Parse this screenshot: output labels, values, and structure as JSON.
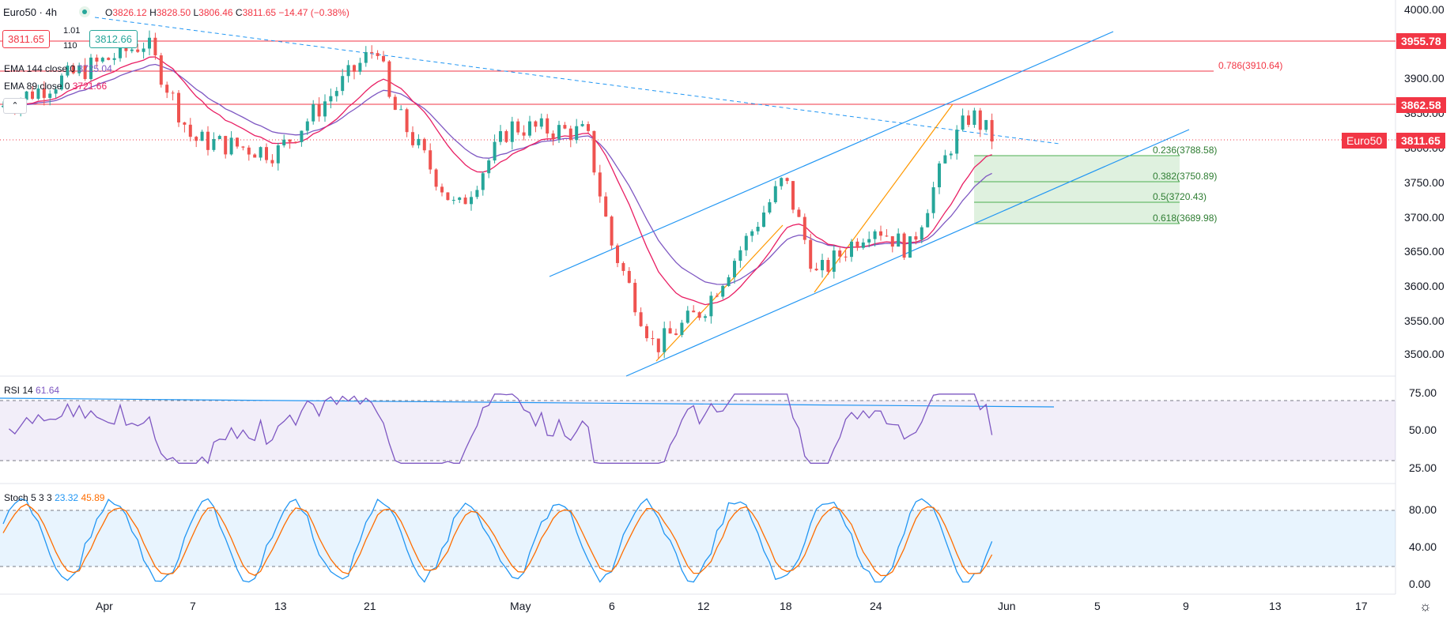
{
  "header": {
    "symbol": "Euro50",
    "interval": "4h",
    "ohlc": {
      "open": "3826.12",
      "high": "3828.50",
      "low": "3806.46",
      "close": "3811.65",
      "change": "−14.47 (−0.38%)"
    },
    "sell_price": "3811.65",
    "buy_price": "3812.66",
    "spread": "1.01",
    "quantity": "110",
    "collapse_icon": "chevron-up-icon"
  },
  "indicators": {
    "ema144": {
      "label": "EMA 144 close 0",
      "value": "3725.04",
      "color": "#7e57c2"
    },
    "ema89": {
      "label": "EMA 89 close 0",
      "value": "3721.66",
      "color": "#e91e63"
    },
    "rsi": {
      "label": "RSI 14",
      "value": "61.64",
      "color": "#7e57c2"
    },
    "stoch": {
      "label": "Stoch 5 3 3",
      "k": "23.32",
      "d": "45.89",
      "k_color": "#2196f3",
      "d_color": "#ff6d00"
    }
  },
  "price_axis": {
    "labels": [
      "4000.00",
      "3950.00",
      "3900.00",
      "3850.00",
      "3800.00",
      "3750.00",
      "3700.00",
      "3650.00",
      "3600.00",
      "3550.00",
      "3500.00"
    ],
    "current": {
      "symbol": "Euro50",
      "value": "3811.65",
      "color": "#f23645"
    },
    "levels": [
      {
        "value": "3955.78",
        "color": "#f23645"
      },
      {
        "value": "3862.58",
        "color": "#f23645"
      }
    ]
  },
  "fib": {
    "levels": [
      {
        "label": "0.786(3910.64)",
        "value": 3910.64
      },
      {
        "label": "0.236(3788.58)",
        "value": 3788.58
      },
      {
        "label": "0.382(3750.89)",
        "value": 3750.89
      },
      {
        "label": "0.5(3720.43)",
        "value": 3720.43
      },
      {
        "label": "0.618(3689.98)",
        "value": 3689.98
      }
    ]
  },
  "rsi_axis": {
    "labels": [
      "75.00",
      "50.00",
      "25.00"
    ]
  },
  "stoch_axis": {
    "labels": [
      "80.00",
      "40.00",
      "0.00"
    ]
  },
  "time_axis": {
    "labels": [
      "Apr",
      "7",
      "13",
      "21",
      "May",
      "6",
      "12",
      "18",
      "24",
      "Jun",
      "5",
      "9",
      "13",
      "17"
    ]
  },
  "settings_icon": "gear-icon",
  "chart_data": {
    "type": "candlestick",
    "symbol": "Euro50",
    "interval": "4h",
    "ylim": [
      3480,
      4010
    ],
    "last_close": 3811.65,
    "key_points": [
      {
        "date": "Apr 3",
        "close": 3960
      },
      {
        "date": "Apr 7",
        "close": 3810
      },
      {
        "date": "Apr 13",
        "close": 3790
      },
      {
        "date": "Apr 21",
        "close": 3955
      },
      {
        "date": "Apr 22",
        "close": 3870
      },
      {
        "date": "Apr 28",
        "close": 3700
      },
      {
        "date": "May 1",
        "close": 3830
      },
      {
        "date": "May 5",
        "close": 3820
      },
      {
        "date": "May 6",
        "close": 3650
      },
      {
        "date": "May 9",
        "close": 3490
      },
      {
        "date": "May 12",
        "close": 3550
      },
      {
        "date": "May 18",
        "close": 3750
      },
      {
        "date": "May 20",
        "close": 3600
      },
      {
        "date": "May 24",
        "close": 3680
      },
      {
        "date": "May 27",
        "close": 3640
      },
      {
        "date": "May 29",
        "close": 3800
      },
      {
        "date": "May 30",
        "close": 3850
      },
      {
        "date": "May 31",
        "close": 3811.65
      }
    ],
    "horizontal_levels": [
      3955.78,
      3910.64,
      3862.58,
      3811.65
    ],
    "rsi_range": [
      20,
      80
    ],
    "stoch_range": [
      0,
      100
    ],
    "grid": true
  }
}
